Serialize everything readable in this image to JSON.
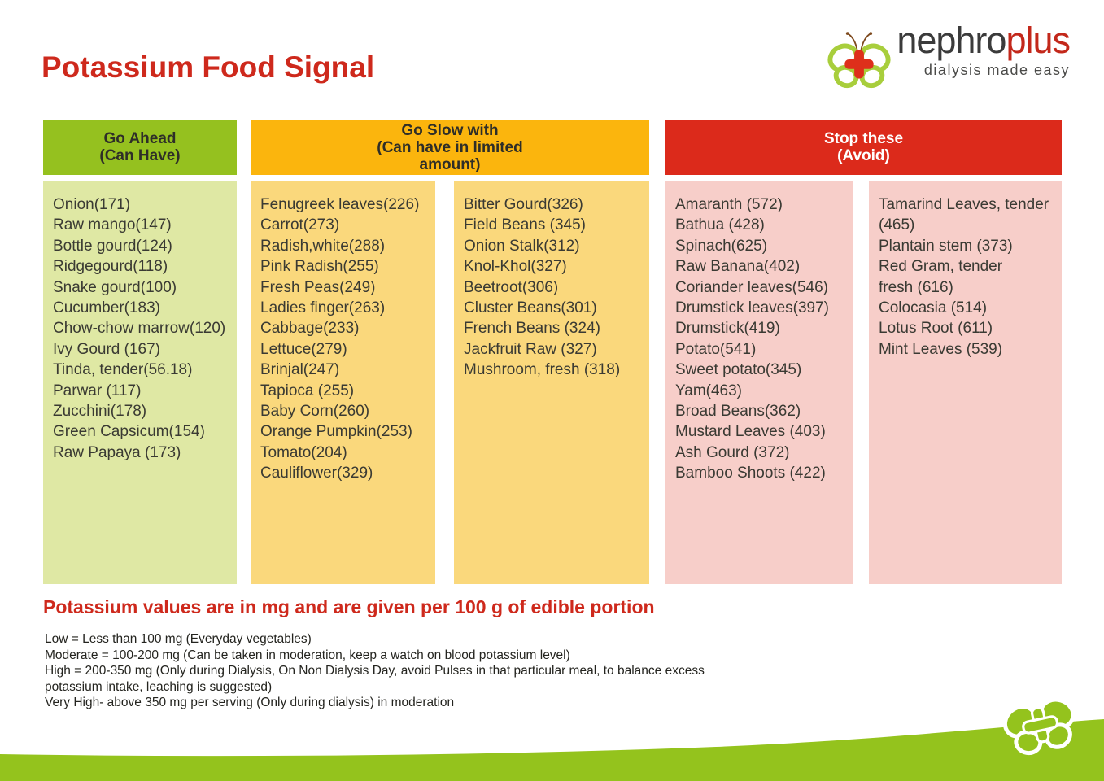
{
  "header": {
    "title": "Potassium Food Signal",
    "logo": {
      "brand_black": "nephro",
      "brand_red": "plus",
      "tagline": "dialysis made easy"
    }
  },
  "columns": {
    "go_ahead": {
      "header": "Go Ahead\n(Can Have)",
      "items": [
        "Onion(171)",
        "Raw mango(147)",
        "Bottle gourd(124)",
        "Ridgegourd(118)",
        "Snake gourd(100)",
        "Cucumber(183)",
        "Chow-chow marrow(120)",
        "Ivy Gourd (167)",
        "Tinda, tender(56.18)",
        "Parwar (117)",
        "Zucchini(178)",
        "Green Capsicum(154)",
        "Raw Papaya (173)"
      ]
    },
    "go_slow": {
      "header": "Go Slow with\n(Can have in limited\namount)",
      "items_left": [
        "Fenugreek leaves(226)",
        "Carrot(273)",
        "Radish,white(288)",
        "Pink Radish(255)",
        "Fresh Peas(249)",
        "Ladies finger(263)",
        "Cabbage(233)",
        "Lettuce(279)",
        "Brinjal(247)",
        "Tapioca (255)",
        "Baby Corn(260)",
        "Orange Pumpkin(253)",
        "Tomato(204)",
        "Cauliflower(329)"
      ],
      "items_right": [
        "Bitter Gourd(326)",
        "Field Beans (345)",
        "Onion Stalk(312)",
        "Knol-Khol(327)",
        "Beetroot(306)",
        "Cluster Beans(301)",
        "French Beans (324)",
        "Jackfruit Raw (327)",
        "Mushroom, fresh (318)"
      ]
    },
    "stop": {
      "header": "Stop these\n(Avoid)",
      "items_left": [
        "Amaranth (572)",
        "Bathua (428)",
        "Spinach(625)",
        "Raw Banana(402)",
        "Coriander leaves(546)",
        "Drumstick leaves(397)",
        "Drumstick(419)",
        "Potato(541)",
        "Sweet potato(345)",
        "Yam(463)",
        "Broad Beans(362)",
        "Mustard Leaves (403)",
        "Ash Gourd (372)",
        "Bamboo Shoots (422)"
      ],
      "items_right": [
        "Tamarind Leaves, tender\n(465)",
        "Plantain stem (373)",
        "Red Gram, tender\nfresh (616)",
        "Colocasia (514)",
        "Lotus Root (611)",
        "Mint Leaves (539)"
      ]
    }
  },
  "footer": {
    "subtitle": "Potassium values are in mg and are given per 100 g of edible portion",
    "notes": [
      "Low = Less than 100 mg (Everyday vegetables)",
      "Moderate = 100-200 mg (Can be taken in moderation, keep a watch on blood potassium level)",
      "High = 200-350 mg (Only during Dialysis, On Non Dialysis Day, avoid Pulses in that particular meal, to balance excess potassium intake, leaching is suggested)",
      "Very High- above 350 mg per serving (Only during dialysis) in moderation"
    ]
  },
  "colors": {
    "title_red": "#CE291C",
    "header_green": "#95C11F",
    "body_green": "#DFE8A4",
    "header_gold": "#FBB50D",
    "body_gold": "#FAD87C",
    "header_red": "#DC2A1B",
    "body_pink": "#F7CEC9",
    "wave_green": "#94C31D",
    "logo_plus_red": "#DE2F1B",
    "text_dark": "#3A3A33"
  }
}
